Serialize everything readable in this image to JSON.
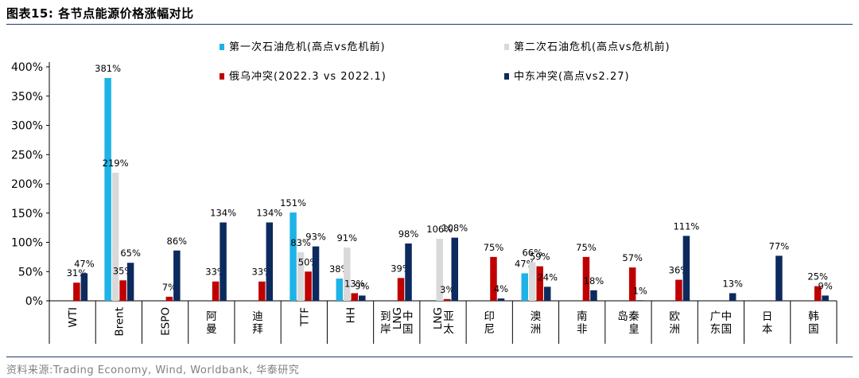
{
  "header": {
    "title": "图表15:  各节点能源价格涨幅对比"
  },
  "footer": {
    "source": "资料来源:Trading Economy, Wind, Worldbank, 华泰研究"
  },
  "colors": {
    "s1": "#1eb3e6",
    "s2": "#d9d9d9",
    "s3": "#c00000",
    "s4": "#0d2a5e",
    "rule": "#1f3a68"
  },
  "chart_data": {
    "type": "bar",
    "title": "各节点能源价格涨幅对比",
    "ylim": [
      0,
      400
    ],
    "yticks": [
      0,
      50,
      100,
      150,
      200,
      250,
      300,
      350,
      400
    ],
    "ytick_labels": [
      "0%",
      "50%",
      "100%",
      "150%",
      "200%",
      "250%",
      "300%",
      "350%",
      "400%"
    ],
    "legend_position": "top",
    "categories": [
      [
        "WTI"
      ],
      [
        "Brent"
      ],
      [
        "ESPO"
      ],
      [
        "阿曼"
      ],
      [
        "迪拜"
      ],
      [
        "TTF"
      ],
      [
        "HH"
      ],
      [
        "中国",
        "LNG",
        "到岸"
      ],
      [
        "亚太",
        "LNG"
      ],
      [
        "印尼"
      ],
      [
        "澳洲"
      ],
      [
        "南非"
      ],
      [
        "秦皇",
        "岛"
      ],
      [
        "欧洲"
      ],
      [
        "中国",
        "广东"
      ],
      [
        "日本"
      ],
      [
        "韩国"
      ]
    ],
    "series": [
      {
        "name": "第一次石油危机(高点vs危机前)",
        "values": [
          null,
          381,
          null,
          null,
          null,
          151,
          38,
          null,
          null,
          null,
          47,
          null,
          null,
          null,
          null,
          null,
          null
        ],
        "labels": [
          null,
          "381%",
          null,
          null,
          null,
          "151%",
          "38%",
          null,
          null,
          null,
          "47%",
          null,
          null,
          null,
          null,
          null,
          null
        ]
      },
      {
        "name": "第二次石油危机(高点vs危机前)",
        "values": [
          null,
          219,
          null,
          null,
          null,
          83,
          91,
          null,
          106,
          null,
          66,
          null,
          null,
          null,
          null,
          null,
          null
        ],
        "labels": [
          null,
          "219%",
          null,
          null,
          null,
          "83%",
          "91%",
          null,
          "106%",
          null,
          "66%",
          null,
          null,
          null,
          null,
          null,
          null
        ]
      },
      {
        "name": "俄乌冲突(2022.3 vs 2022.1)",
        "values": [
          31,
          35,
          7,
          33,
          33,
          50,
          13,
          39,
          3,
          75,
          59,
          75,
          57,
          36,
          null,
          null,
          25
        ],
        "labels": [
          "31%",
          "35%",
          "7%",
          "33%",
          "33%",
          "50%",
          "13%",
          "39%",
          "3%",
          "75%",
          "59%",
          "75%",
          "57%",
          "36%",
          null,
          null,
          "25%"
        ]
      },
      {
        "name": "中东冲突(高点vs2.27)",
        "values": [
          47,
          65,
          86,
          134,
          134,
          93,
          9,
          98,
          108,
          4,
          24,
          18,
          1,
          111,
          13,
          77,
          9
        ],
        "labels": [
          "47%",
          "65%",
          "86%",
          "134%",
          "134%",
          "93%",
          "9%",
          "98%",
          "108%",
          "4%",
          "24%",
          "18%",
          "1%",
          "111%",
          "13%",
          "77%",
          "9%"
        ]
      }
    ]
  }
}
